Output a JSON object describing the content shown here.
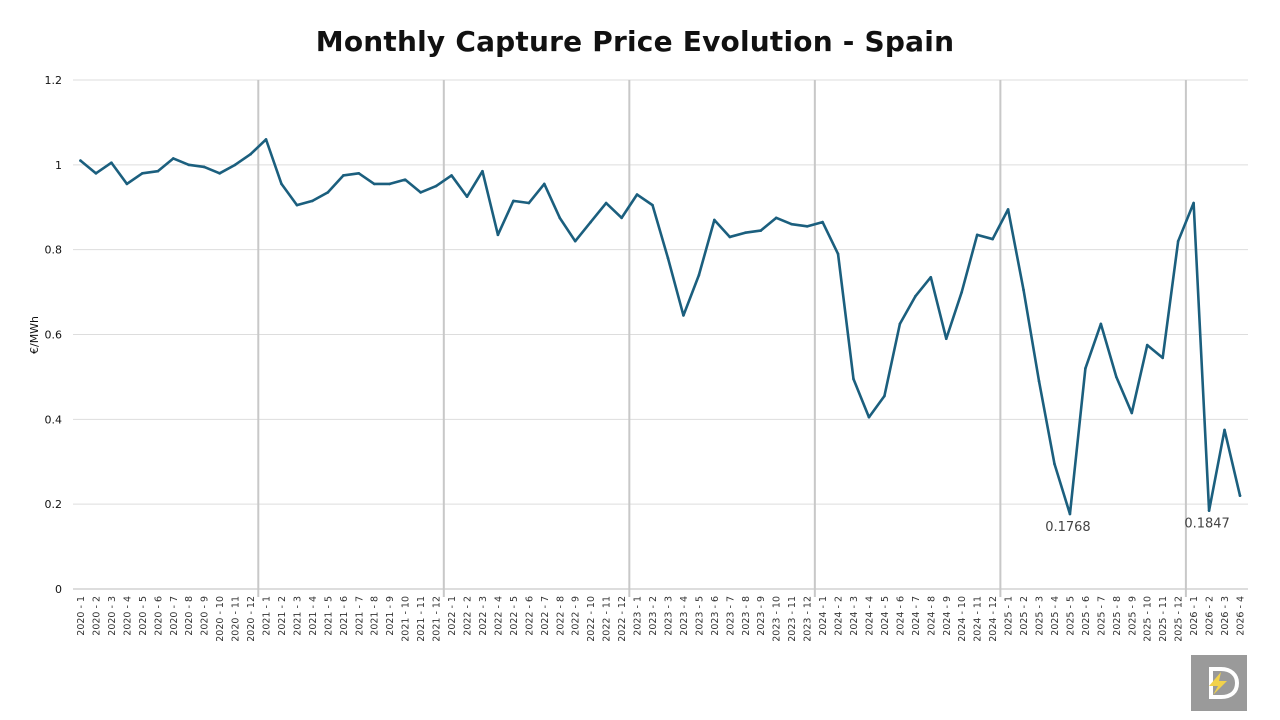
{
  "chart_data": {
    "type": "line",
    "title": "Monthly Capture Price Evolution - Spain",
    "ylabel": "€/MWh",
    "xlabel": "",
    "ylim": [
      0,
      1.2
    ],
    "yticks": [
      0,
      0.2,
      0.4,
      0.6,
      0.8,
      1,
      1.2
    ],
    "grid": "horizontal",
    "year_separators_after": [
      "2020 - 12",
      "2021 - 12",
      "2022 - 12",
      "2023 - 12",
      "2024 - 12",
      "2025 - 12"
    ],
    "series_color": "#1b5f7e",
    "categories": [
      "2020 - 1",
      "2020 - 2",
      "2020 - 3",
      "2020 - 4",
      "2020 - 5",
      "2020 - 6",
      "2020 - 7",
      "2020 - 8",
      "2020 - 9",
      "2020 - 10",
      "2020 - 11",
      "2020 - 12",
      "2021 - 1",
      "2021 - 2",
      "2021 - 3",
      "2021 - 4",
      "2021 - 5",
      "2021 - 6",
      "2021 - 7",
      "2021 - 8",
      "2021 - 9",
      "2021 - 10",
      "2021 - 11",
      "2021 - 12",
      "2022 - 1",
      "2022 - 2",
      "2022 - 3",
      "2022 - 4",
      "2022 - 5",
      "2022 - 6",
      "2022 - 7",
      "2022 - 8",
      "2022 - 9",
      "2022 - 10",
      "2022 - 11",
      "2022 - 12",
      "2023 - 1",
      "2023 - 2",
      "2023 - 3",
      "2023 - 4",
      "2023 - 5",
      "2023 - 6",
      "2023 - 7",
      "2023 - 8",
      "2023 - 9",
      "2023 - 10",
      "2023 - 11",
      "2023 - 12",
      "2024 - 1",
      "2024 - 2",
      "2024 - 3",
      "2024 - 4",
      "2024 - 5",
      "2024 - 6",
      "2024 - 7",
      "2024 - 8",
      "2024 - 9",
      "2024 - 10",
      "2024 - 11",
      "2024 - 12",
      "2025 - 1",
      "2025 - 2",
      "2025 - 3",
      "2025 - 4",
      "2025 - 5",
      "2025 - 6",
      "2025 - 7",
      "2025 - 8",
      "2025 - 9",
      "2025 - 10",
      "2025 - 11",
      "2025 - 12",
      "2026 - 1",
      "2026 - 2",
      "2026 - 3",
      "2026 - 4"
    ],
    "series": [
      {
        "values": [
          1.01,
          0.98,
          1.005,
          0.955,
          0.98,
          0.985,
          1.015,
          1.0,
          0.995,
          0.98,
          1.0,
          1.025,
          1.06,
          0.955,
          0.905,
          0.915,
          0.935,
          0.975,
          0.98,
          0.955,
          0.955,
          0.965,
          0.935,
          0.95,
          0.975,
          0.925,
          0.985,
          0.835,
          0.915,
          0.91,
          0.955,
          0.875,
          0.82,
          0.865,
          0.91,
          0.875,
          0.93,
          0.905,
          0.78,
          0.645,
          0.74,
          0.87,
          0.83,
          0.84,
          0.845,
          0.875,
          0.86,
          0.855,
          0.865,
          0.79,
          0.495,
          0.405,
          0.455,
          0.625,
          0.69,
          0.735,
          0.59,
          0.7,
          0.835,
          0.825,
          0.895,
          0.705,
          0.49,
          0.295,
          0.1768,
          0.52,
          0.625,
          0.5,
          0.415,
          0.575,
          0.545,
          0.82,
          0.91,
          0.1847,
          0.375,
          0.22
        ]
      }
    ],
    "annotations": [
      {
        "category": "2025 - 5",
        "text": "0.1768"
      },
      {
        "category": "2026 - 2",
        "text": "0.1847"
      }
    ]
  },
  "logo": {
    "name": "D-lightning-logo"
  }
}
